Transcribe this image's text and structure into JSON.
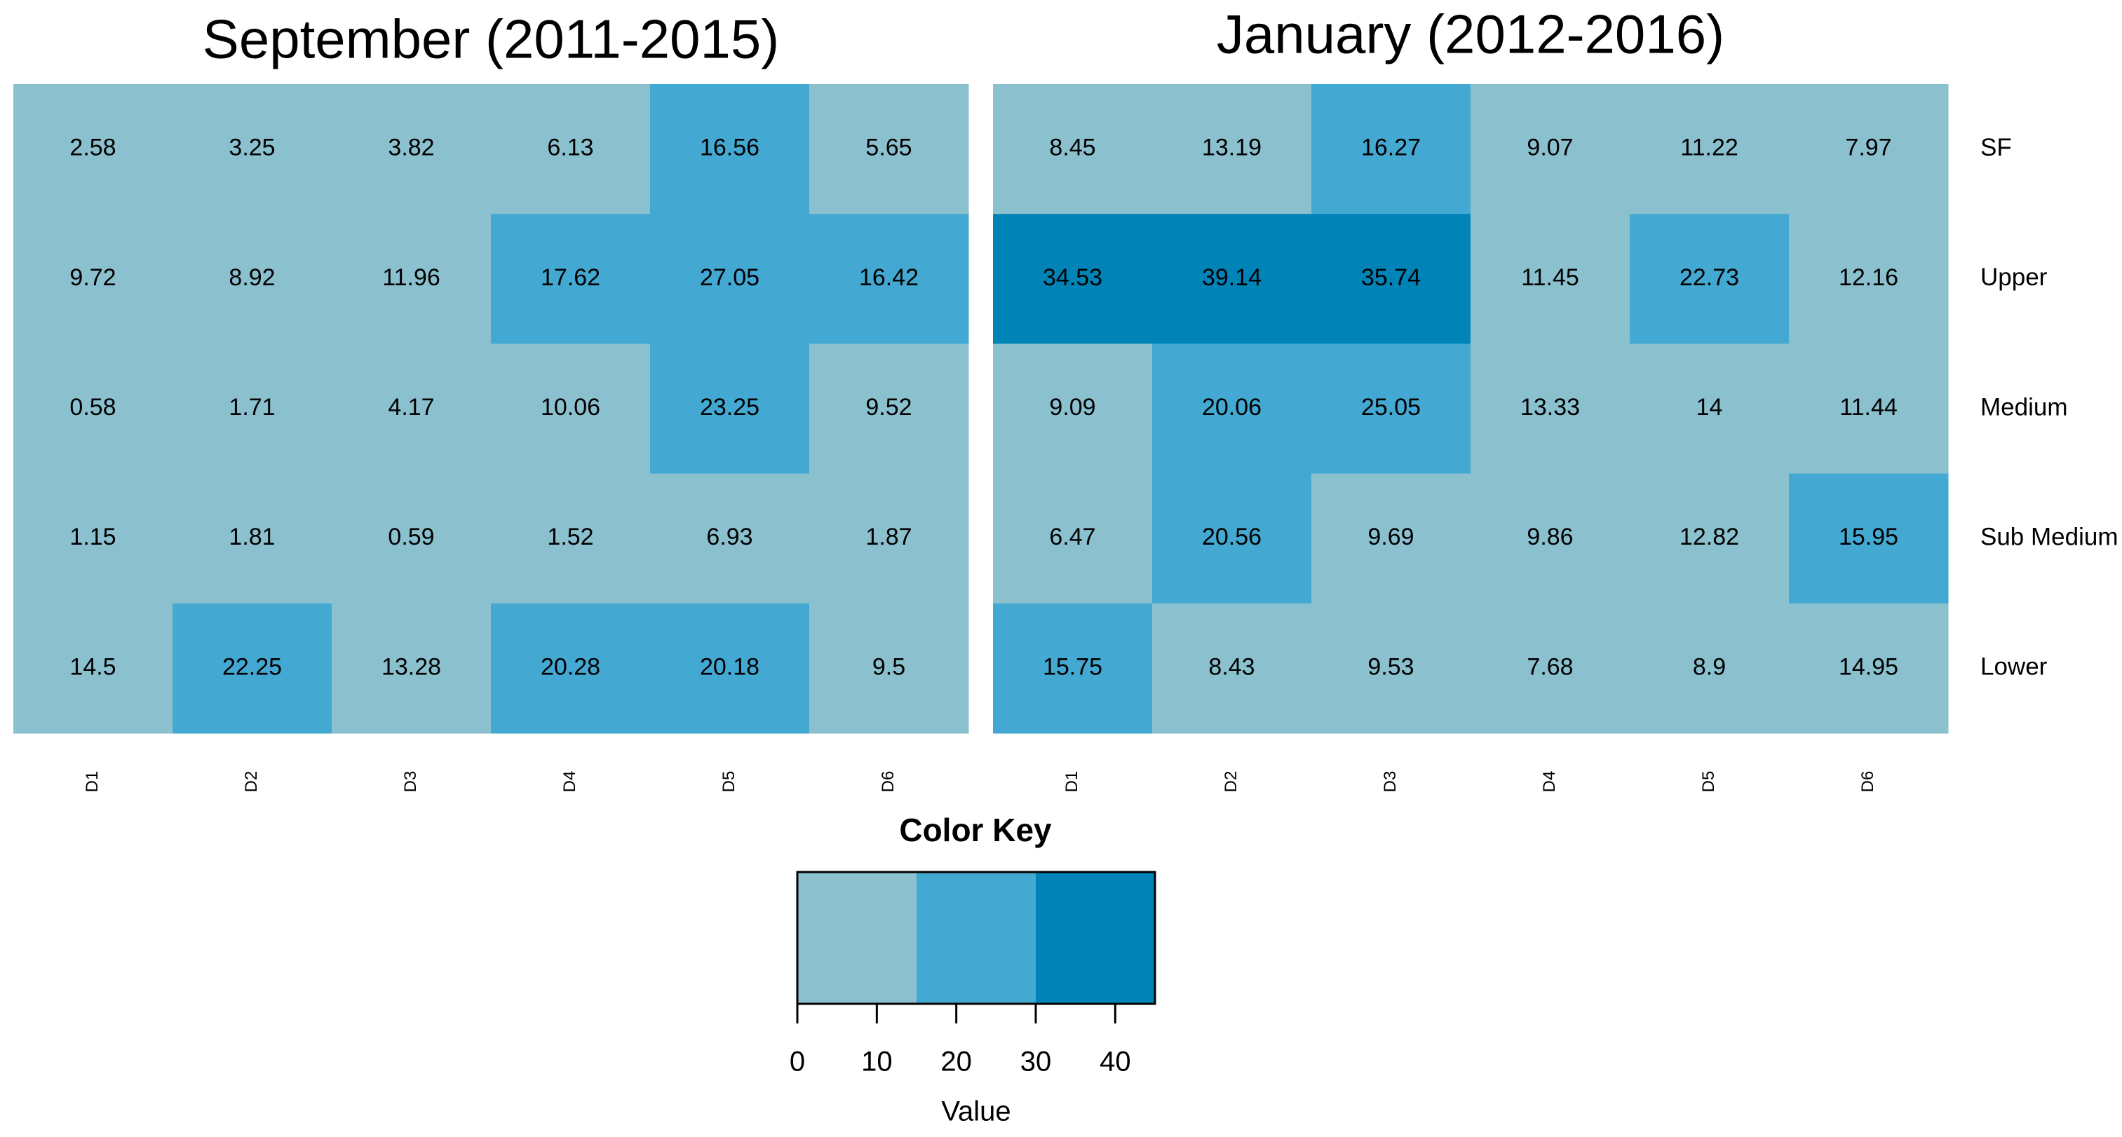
{
  "chart_data": [
    {
      "type": "heatmap",
      "title": "September (2011-2015)",
      "columns": [
        "D1",
        "D2",
        "D3",
        "D4",
        "D5",
        "D6"
      ],
      "values": [
        [
          2.58,
          3.25,
          3.82,
          6.13,
          16.56,
          5.65
        ],
        [
          9.72,
          8.92,
          11.96,
          17.62,
          27.05,
          16.42
        ],
        [
          0.58,
          1.71,
          4.17,
          10.06,
          23.25,
          9.52
        ],
        [
          1.15,
          1.81,
          0.59,
          1.52,
          6.93,
          1.87
        ],
        [
          14.5,
          22.25,
          13.28,
          20.28,
          20.18,
          9.5
        ]
      ]
    },
    {
      "type": "heatmap",
      "title": "January (2012-2016)",
      "columns": [
        "D1",
        "D2",
        "D3",
        "D4",
        "D5",
        "D6"
      ],
      "rows": [
        "SF",
        "Upper",
        "Medium",
        "Sub Medium",
        "Lower"
      ],
      "values": [
        [
          8.45,
          13.19,
          16.27,
          9.07,
          11.22,
          7.97
        ],
        [
          34.53,
          39.14,
          35.74,
          11.45,
          22.73,
          12.16
        ],
        [
          9.09,
          20.06,
          25.05,
          13.33,
          14,
          11.44
        ],
        [
          6.47,
          20.56,
          9.69,
          9.86,
          12.82,
          15.95
        ],
        [
          15.75,
          8.43,
          9.53,
          7.68,
          8.9,
          14.95
        ]
      ]
    }
  ],
  "color_key": {
    "title": "Color Key",
    "xlabel": "Value",
    "breaks": [
      0,
      15,
      30,
      45
    ],
    "colors": [
      "#8bc1cf",
      "#43a8d2",
      "#0084b8"
    ],
    "xlim": [
      0,
      45
    ],
    "xticks": [
      0,
      10,
      20,
      30,
      40
    ]
  }
}
